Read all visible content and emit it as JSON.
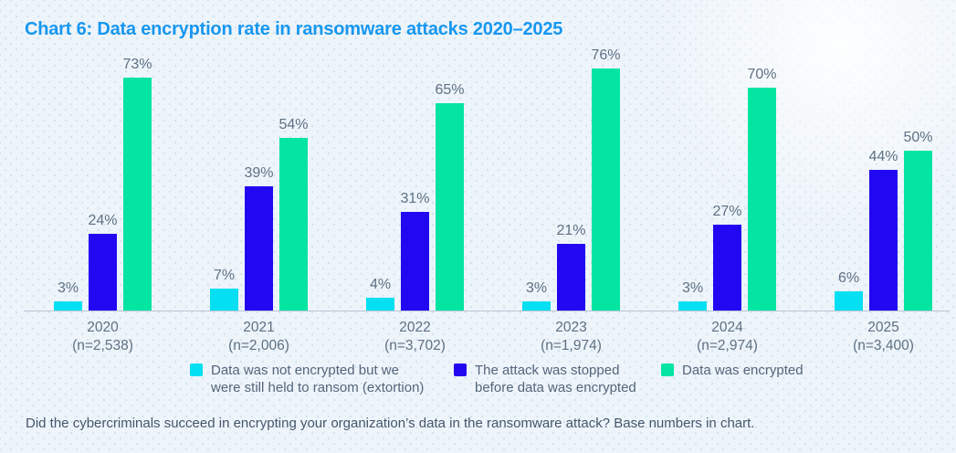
{
  "title": "Chart 6: Data encryption rate in ransomware attacks 2020–2025",
  "footnote": "Did the cybercriminals succeed in encrypting your organization’s data in the ransomware attack? Base numbers in chart.",
  "colors": {
    "title": "#1797f0",
    "extortion": "#04dff2",
    "stopped": "#2208f0",
    "encrypted": "#04e5a2",
    "axis_label": "#5e7082",
    "legend_text": "#54657a",
    "baseline": "#b8c6d3",
    "background": "#edf4fa"
  },
  "chart_data": {
    "type": "bar",
    "title": "Chart 6: Data encryption rate in ransomware attacks 2020–2025",
    "categories": [
      "2020",
      "2021",
      "2022",
      "2023",
      "2024",
      "2025"
    ],
    "category_sublabels": [
      "(n=2,538)",
      "(n=2,006)",
      "(n=3,702)",
      "(n=1,974)",
      "(n=2,974)",
      "(n=3,400)"
    ],
    "series": [
      {
        "name": "Data was not encrypted but we were still held to ransom (extortion)",
        "color": "#04dff2",
        "values": [
          3,
          7,
          4,
          3,
          3,
          6
        ]
      },
      {
        "name": "The attack was stopped before data was encrypted",
        "color": "#2208f0",
        "values": [
          24,
          39,
          31,
          21,
          27,
          44
        ]
      },
      {
        "name": "Data was encrypted",
        "color": "#04e5a2",
        "values": [
          73,
          54,
          65,
          76,
          70,
          50
        ]
      }
    ],
    "value_suffix": "%",
    "xlabel": "",
    "ylabel": "",
    "ylim": [
      0,
      80
    ],
    "grid": false,
    "legend_position": "bottom"
  },
  "legend": {
    "items": [
      {
        "lines": [
          "Data was not encrypted but we",
          "were still held to ransom (extortion)"
        ]
      },
      {
        "lines": [
          "The attack was stopped",
          "before data was encrypted"
        ]
      },
      {
        "lines": [
          "Data was encrypted"
        ]
      }
    ]
  }
}
